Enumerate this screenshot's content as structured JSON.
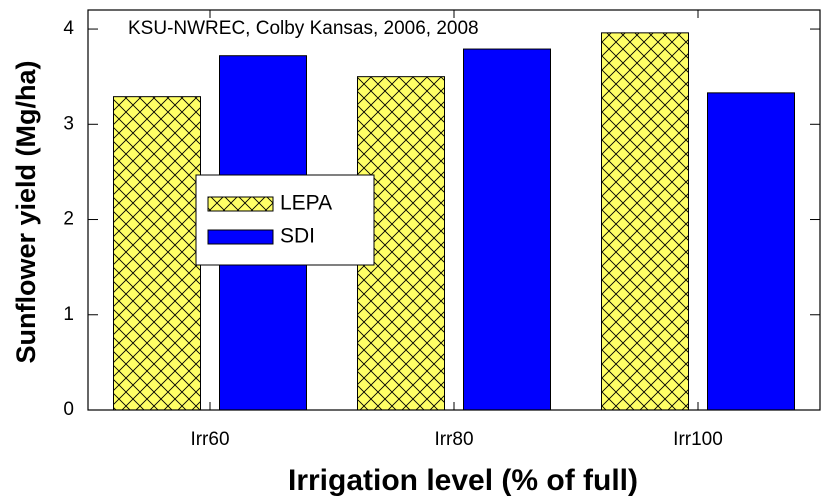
{
  "chart_data": {
    "type": "bar",
    "title": "KSU-NWREC, Colby Kansas, 2006, 2008",
    "x_label": "Irrigation level (% of full)",
    "y_label": "Sunflower yield (Mg/ha)",
    "categories": [
      "Irr60",
      "Irr80",
      "Irr100"
    ],
    "series": [
      {
        "name": "LEPA",
        "color": "#ffff66",
        "hatch": "crosshatch",
        "values": [
          3.29,
          3.5,
          3.96
        ]
      },
      {
        "name": "SDI",
        "color": "#0000ff",
        "values": [
          3.72,
          3.79,
          3.33
        ]
      }
    ],
    "ylim": [
      0,
      4.2
    ],
    "yticks": [
      0,
      1,
      2,
      3,
      4
    ]
  }
}
